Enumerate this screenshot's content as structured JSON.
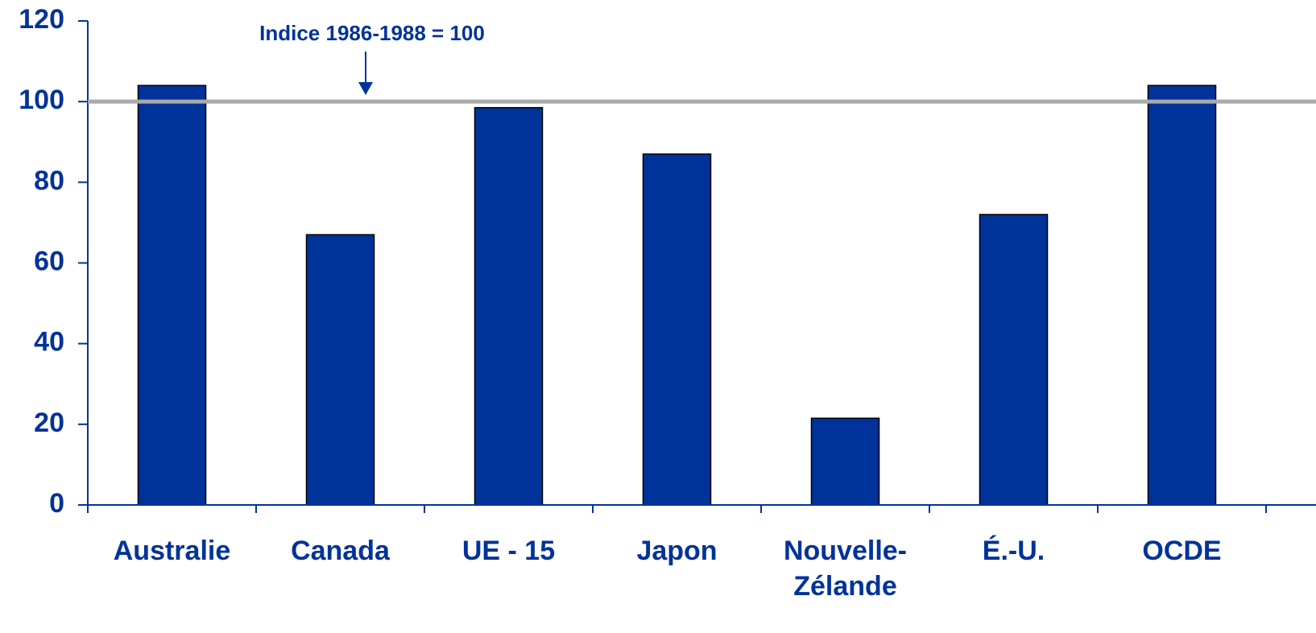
{
  "chart_data": {
    "type": "bar",
    "annotation": "Indice 1986-1988 = 100",
    "reference_line": 100,
    "categories": [
      "Australie",
      "Canada",
      "UE - 15",
      "Japon",
      "Nouvelle-Zélande",
      "É.-U.",
      "OCDE"
    ],
    "values": [
      104,
      67,
      98.5,
      87,
      21.5,
      72,
      104
    ],
    "color": "#003399",
    "ylim": [
      0,
      120
    ],
    "yticks": [
      0,
      20,
      40,
      60,
      80,
      100,
      120
    ],
    "grid": false
  }
}
